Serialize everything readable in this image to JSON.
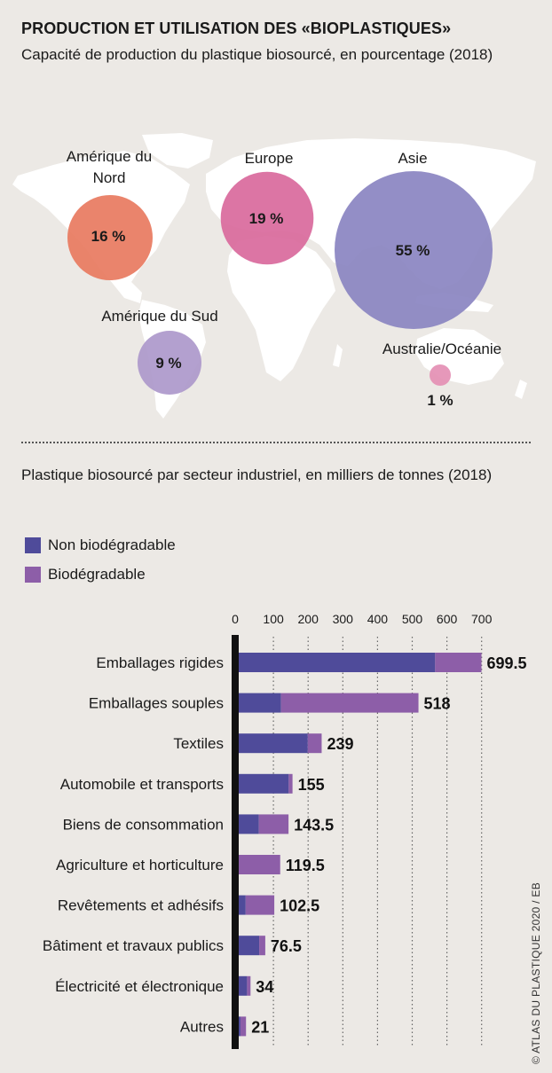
{
  "header": {
    "title": "PRODUCTION ET UTILISATION DES «BIOPLASTIQUES»",
    "subtitle": "Capacité de production du plastique biosourcé, en pourcentage (2018)"
  },
  "map": {
    "regions": [
      {
        "name": "Amérique du Nord",
        "label_lines": [
          "Amérique du",
          "Nord"
        ],
        "value_label": "16 %",
        "share": 16,
        "color": "#e8795f"
      },
      {
        "name": "Europe",
        "label_lines": [
          "Europe"
        ],
        "value_label": "19 %",
        "share": 19,
        "color": "#d9699c"
      },
      {
        "name": "Asie",
        "label_lines": [
          "Asie"
        ],
        "value_label": "55 %",
        "share": 55,
        "color": "#8a84c1"
      },
      {
        "name": "Amérique du Sud",
        "label_lines": [
          "Amérique du Sud"
        ],
        "value_label": "9 %",
        "share": 9,
        "color": "#ad98cb"
      },
      {
        "name": "Australie/Océanie",
        "label_lines": [
          "Australie/Océanie"
        ],
        "value_label": "1 %",
        "share": 1,
        "color": "#e48fb4"
      }
    ]
  },
  "sector_chart": {
    "subtitle": "Plastique biosourcé par secteur industriel, en milliers de tonnes (2018)",
    "legend": [
      {
        "label": "Non biodégradable",
        "color": "#4f4b9a"
      },
      {
        "label": "Biodégradable",
        "color": "#8d5ea8"
      }
    ]
  },
  "chart_data": {
    "type": "bar",
    "orientation": "horizontal",
    "stacked": true,
    "title": "",
    "xlabel": "",
    "ylabel": "",
    "xlim": [
      0,
      700
    ],
    "xticks": [
      0,
      100,
      200,
      300,
      400,
      500,
      600,
      700
    ],
    "grid": true,
    "categories": [
      "Emballages rigides",
      "Emballages souples",
      "Textiles",
      "Automobile et transports",
      "Biens de consommation",
      "Agriculture et horticulture",
      "Revêtements et adhésifs",
      "Bâtiment et travaux publics",
      "Électricité et électronique",
      "Autres"
    ],
    "series": [
      {
        "name": "Non biodégradable",
        "color": "#4f4b9a",
        "values": [
          566,
          122,
          199,
          144,
          58,
          0,
          20,
          59,
          24,
          5
        ]
      },
      {
        "name": "Biodégradable",
        "color": "#8d5ea8",
        "values": [
          133.5,
          396,
          40,
          11,
          85.5,
          119.5,
          82.5,
          17.5,
          10,
          16
        ]
      }
    ],
    "totals": [
      "699.5",
      "518",
      "239",
      "155",
      "143.5",
      "119.5",
      "102.5",
      "76.5",
      "34",
      "21"
    ]
  },
  "credit": "© ATLAS DU PLASTIQUE 2020 / EB"
}
